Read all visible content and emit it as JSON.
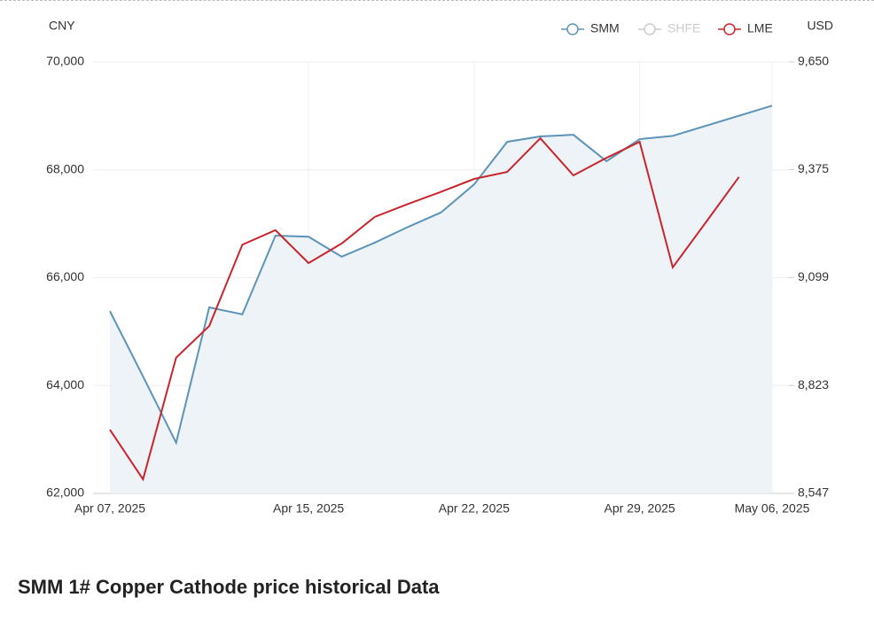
{
  "chart_data": {
    "type": "line",
    "title": "SMM 1# Copper Cathode price historical Data",
    "y_label": "CNY",
    "y2_label": "USD",
    "categories": [
      "Apr 07, 2025",
      null,
      null,
      null,
      null,
      null,
      "Apr 15, 2025",
      null,
      null,
      null,
      null,
      "Apr 22, 2025",
      null,
      null,
      null,
      null,
      "Apr 29, 2025",
      null,
      null,
      null,
      "May 06, 2025"
    ],
    "series": [
      {
        "name": "SMM",
        "color": "#5b94b8",
        "area": true,
        "values": [
          65380,
          64170,
          62940,
          65450,
          65320,
          66780,
          66760,
          66390,
          66650,
          66940,
          67210,
          67730,
          68520,
          68620,
          68650,
          68160,
          68570,
          68630,
          null,
          null,
          69190
        ]
      },
      {
        "name": "SHFE",
        "color": "#cccccc",
        "hidden": true,
        "values": [
          null,
          null,
          null,
          null,
          null,
          null,
          null,
          null,
          null,
          null,
          null,
          null,
          null,
          null,
          null,
          null,
          null,
          null,
          null,
          null,
          null
        ]
      },
      {
        "name": "LME",
        "color": "#c8262c",
        "axis": "y2",
        "values": [
          8710,
          8583,
          8894,
          8975,
          9183,
          9220,
          9136,
          9186,
          9254,
          9287,
          9318,
          9351,
          9369,
          9455,
          9360,
          9405,
          9446,
          9125,
          9240,
          9356,
          null
        ]
      }
    ],
    "span_gaps": true,
    "ylim": [
      62000,
      70000
    ],
    "yticks": [
      {
        "value": 62000,
        "label": "62,000"
      },
      {
        "value": 64000,
        "label": "64,000"
      },
      {
        "value": 66000,
        "label": "66,000"
      },
      {
        "value": 68000,
        "label": "68,000"
      },
      {
        "value": 70000,
        "label": "70,000"
      }
    ],
    "y2lim": [
      8547,
      9650
    ],
    "y2ticks": [
      {
        "value": 8547,
        "label": "8,547"
      },
      {
        "value": 8823,
        "label": "8,823"
      },
      {
        "value": 9099,
        "label": "9,099"
      },
      {
        "value": 9375,
        "label": "9,375"
      },
      {
        "value": 9650,
        "label": "9,650"
      }
    ],
    "grid": true,
    "legend": "top-right"
  }
}
